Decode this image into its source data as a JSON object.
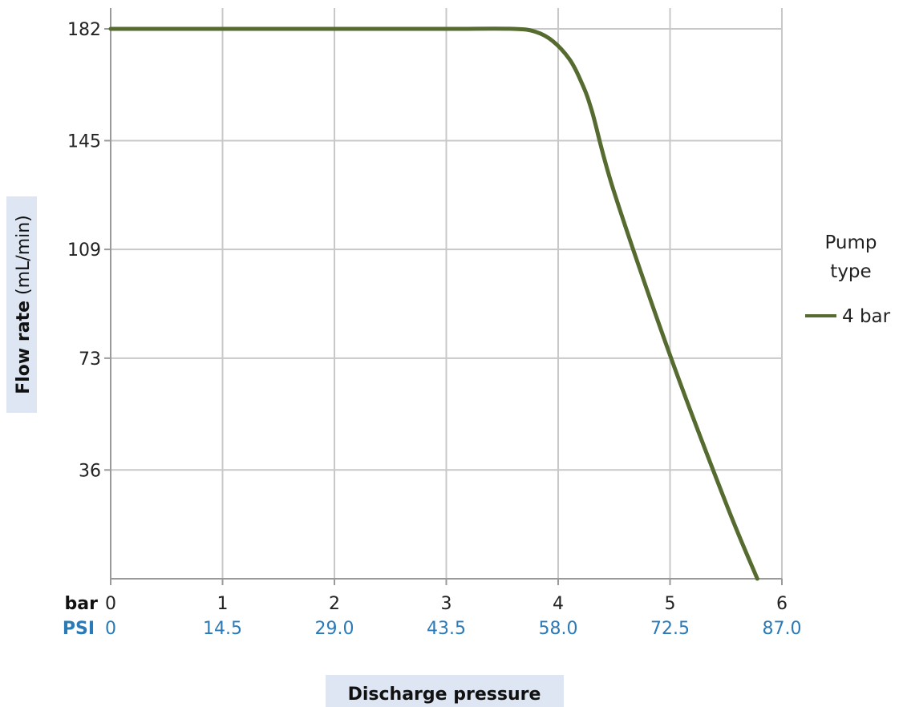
{
  "chart_data": {
    "type": "line",
    "title": "",
    "xlabel": "Discharge pressure",
    "ylabel_bold": "Flow rate",
    "ylabel_unit": "(mL/min)",
    "x_unit_primary": "bar",
    "x_unit_secondary": "PSI",
    "x_ticks": [
      0,
      1,
      2,
      3,
      4,
      5,
      6
    ],
    "x_tick_labels_bar": [
      "0",
      "1",
      "2",
      "3",
      "4",
      "5",
      "6"
    ],
    "x_tick_labels_psi": [
      "0",
      "14.5",
      "29.0",
      "43.5",
      "58.0",
      "72.5",
      "87.0"
    ],
    "y_ticks": [
      0,
      36,
      73,
      109,
      145,
      182
    ],
    "y_tick_labels": [
      "",
      "36",
      "73",
      "109",
      "145",
      "182"
    ],
    "xlim": [
      0,
      6
    ],
    "ylim": [
      0,
      182
    ],
    "grid": true,
    "legend": {
      "title": "Pump type",
      "title_lines": [
        "Pump",
        "type"
      ],
      "placement": "right"
    },
    "series": [
      {
        "name": "4 bar",
        "color": "#556b2f",
        "x": [
          0,
          1,
          2,
          3,
          3.6,
          3.8,
          3.95,
          4.1,
          4.2,
          4.3,
          4.5,
          5,
          5.5,
          5.78
        ],
        "y": [
          182,
          182,
          182,
          182,
          182,
          181,
          178,
          172,
          165,
          155,
          128,
          74,
          25,
          0
        ]
      }
    ]
  }
}
